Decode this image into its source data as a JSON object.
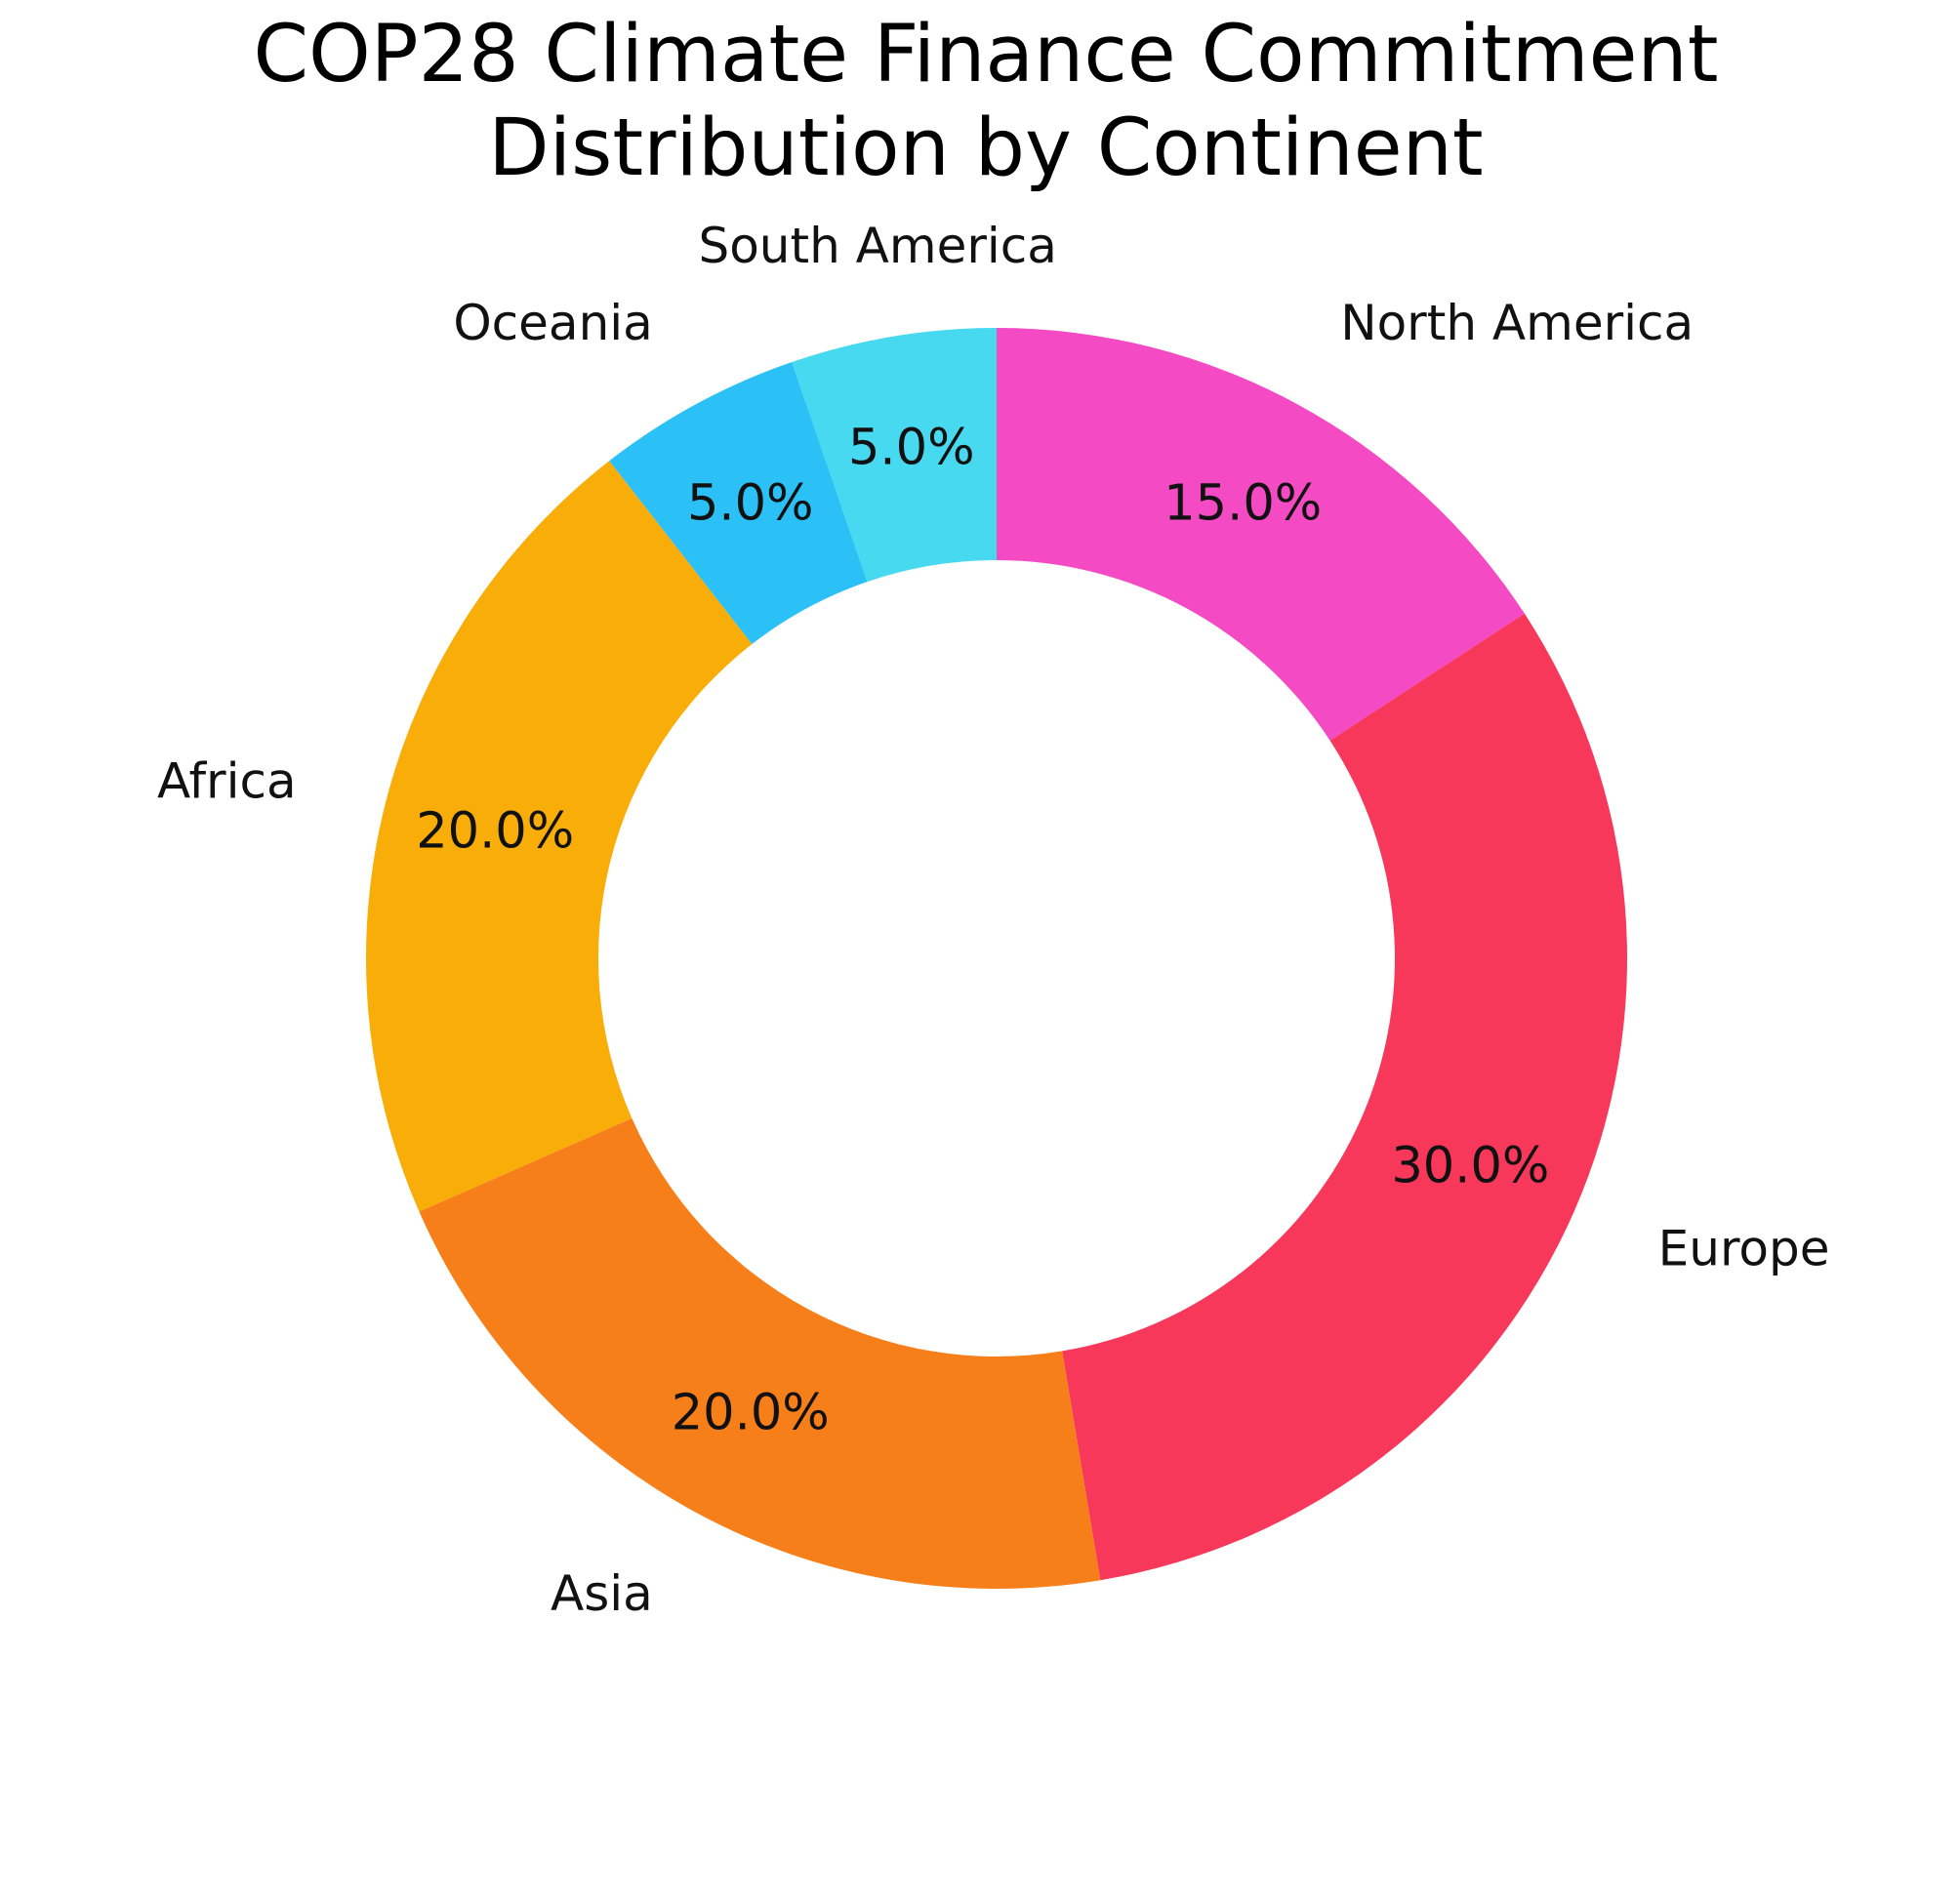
{
  "chart_data": {
    "type": "pie",
    "subtype": "donut",
    "title_lines": [
      "COP28 Climate Finance Commitment",
      "Distribution by Continent"
    ],
    "categories": [
      "North America",
      "Europe",
      "Asia",
      "Africa",
      "Oceania",
      "South America"
    ],
    "values": [
      15.0,
      30.0,
      20.0,
      20.0,
      5.0,
      5.0
    ],
    "value_labels": [
      "15.0%",
      "30.0%",
      "20.0%",
      "20.0%",
      "5.0%",
      "5.0%"
    ],
    "colors": [
      "#f44ac3",
      "#f7385a",
      "#f77f1a",
      "#f9ad09",
      "#2bc1f7",
      "#47d9ef"
    ],
    "start": "top",
    "direction": "clockwise",
    "legend": "none"
  }
}
